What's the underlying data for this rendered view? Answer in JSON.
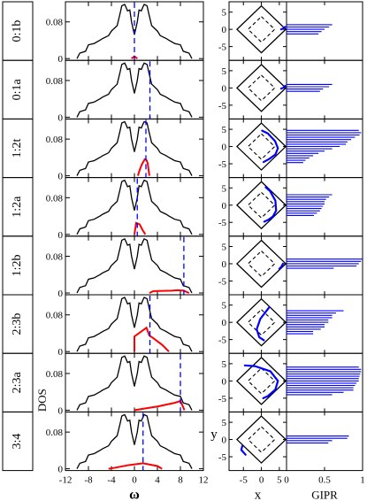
{
  "chart_data": {
    "type": "line",
    "title": "",
    "rows": [
      "0:1b",
      "0:1a",
      "1:2t",
      "1:2a",
      "1:2b",
      "2:3b",
      "2:3a",
      "3:4"
    ],
    "dos_panel": {
      "ylabel": "DOS",
      "xlabel": "ω",
      "xlim": [
        -12,
        12
      ],
      "ylim": [
        0,
        0.12
      ],
      "xticks": [
        "-12",
        "-8",
        "-4",
        "0",
        "4",
        "8",
        "12"
      ],
      "yticks": [
        "0",
        "0.08"
      ],
      "series": [
        {
          "color": "#000000",
          "x": [
            -10,
            -9.5,
            -8.5,
            -8,
            -7,
            -6,
            -5.5,
            -4.5,
            -4,
            -3,
            -2.5,
            -2.2,
            -1.7,
            -1.5,
            -1.2,
            -0.8,
            -0.5,
            0,
            0.5,
            0.8,
            1.2,
            1.5,
            1.7,
            2.2,
            2.5,
            3,
            4,
            4.5,
            5.5,
            6,
            7,
            8,
            8.5,
            9.5,
            10
          ],
          "y": [
            0,
            0.012,
            0.016,
            0.03,
            0.033,
            0.04,
            0.044,
            0.05,
            0.06,
            0.072,
            0.098,
            0.115,
            0.118,
            0.113,
            0.104,
            0.106,
            0.08,
            0.052,
            0.08,
            0.106,
            0.104,
            0.113,
            0.118,
            0.115,
            0.098,
            0.072,
            0.06,
            0.05,
            0.044,
            0.04,
            0.033,
            0.03,
            0.016,
            0.012,
            0
          ]
        }
      ],
      "markers_x": [
        0,
        2.7,
        2,
        0.5,
        8.6,
        2.7,
        8,
        1.5
      ],
      "projected_dos": [
        {
          "x": [
            -0.5,
            0,
            0.5
          ],
          "y": [
            0,
            0.005,
            0
          ]
        },
        {
          "x": [
            2.6,
            2.8
          ],
          "y": [
            0,
            0.001
          ]
        },
        {
          "x": [
            0.6,
            0.9,
            1.3,
            1.8,
            2.1,
            2.3,
            2.5,
            2.6
          ],
          "y": [
            0,
            0.012,
            0.025,
            0.036,
            0.034,
            0.028,
            0.01,
            0
          ]
        },
        {
          "x": [
            0,
            0.3,
            0.9,
            1.4,
            1.9
          ],
          "y": [
            0,
            0.025,
            0.022,
            0.01,
            0
          ]
        },
        {
          "x": [
            2.6,
            3.3,
            6.5,
            7.5,
            8.6,
            9.5
          ],
          "y": [
            0,
            0.004,
            0.005,
            0.006,
            0.005,
            0
          ]
        },
        {
          "x": [
            0,
            0,
            1,
            2.1,
            2.6,
            3.2,
            4.8,
            6
          ],
          "y": [
            0,
            0.033,
            0.042,
            0.052,
            0.035,
            0.03,
            0.015,
            0
          ]
        },
        {
          "x": [
            0,
            4,
            7,
            8,
            8.3,
            8.7
          ],
          "y": [
            0,
            0.008,
            0.016,
            0.02,
            0.012,
            0
          ]
        },
        {
          "x": [
            -4.5,
            -3.5,
            -1,
            1.5,
            4,
            4.8
          ],
          "y": [
            0,
            0.002,
            0.008,
            0.012,
            0.006,
            0
          ]
        }
      ]
    },
    "xy_panel": {
      "xlabel": "x",
      "ylabel": "y",
      "xlim": [
        -9,
        7
      ],
      "ylim": [
        -9,
        8
      ],
      "xticks": [
        "-5",
        "0",
        "5"
      ],
      "yticks": [
        "-5",
        "0",
        "5"
      ],
      "blue_paths": [
        [
          [
            5.5,
            0
          ],
          [
            6.2,
            0.3
          ],
          [
            6.6,
            0.7
          ]
        ],
        [
          [
            5.5,
            -0.2
          ],
          [
            6.2,
            0.1
          ],
          [
            6.6,
            0.6
          ]
        ],
        [
          [
            0.2,
            4.6
          ],
          [
            1.8,
            3.8
          ],
          [
            3.8,
            1.6
          ],
          [
            4.6,
            -0.5
          ],
          [
            3.9,
            -2.3
          ],
          [
            2.2,
            -3.6
          ],
          [
            0.6,
            -4.5
          ]
        ],
        [
          [
            1.2,
            5.2
          ],
          [
            2.4,
            4.1
          ],
          [
            3.9,
            1.3
          ],
          [
            4.1,
            -1.6
          ],
          [
            3.2,
            -3.3
          ],
          [
            2,
            -4.2
          ],
          [
            0.8,
            -4.8
          ]
        ],
        [
          [
            5,
            -1.5
          ],
          [
            5.6,
            -0.8
          ],
          [
            6,
            0
          ]
        ],
        [
          [
            2.2,
            4.4
          ],
          [
            -0.3,
            1
          ],
          [
            -1.3,
            -2
          ],
          [
            -0.6,
            -4.3
          ],
          [
            0.7,
            -5.2
          ]
        ],
        [
          [
            -4.6,
            4.5
          ],
          [
            -1.8,
            4.3
          ],
          [
            2.5,
            2.8
          ],
          [
            4.6,
            0
          ],
          [
            3.9,
            -2.5
          ],
          [
            1.8,
            -4.4
          ],
          [
            0.5,
            -5
          ]
        ],
        [
          [
            -4.4,
            -4.4
          ],
          [
            -5.6,
            -3
          ],
          [
            -5.3,
            -1.9
          ]
        ]
      ]
    },
    "gipr_panel": {
      "xlabel": "GIPR",
      "xlim": [
        0,
        1
      ],
      "xticks": [
        "0",
        "0.5",
        "1"
      ],
      "bar_values": [
        [
          0.6,
          0.56,
          0.5,
          0.46,
          0.42
        ],
        [
          0.6,
          0.56,
          0.48,
          0.44
        ],
        [
          0.95,
          0.98,
          0.96,
          0.9,
          0.85,
          0.8,
          0.78,
          0.7,
          0.6,
          0.5,
          0.42,
          0.35,
          0.3,
          0.25,
          0.22
        ],
        [
          0.6,
          0.56,
          0.52,
          0.5,
          0.5,
          0.48,
          0.46,
          0.44,
          0.4,
          0.36
        ],
        [
          1,
          0.98,
          0.95,
          0.92,
          0.62
        ],
        [
          0.75,
          0.65,
          0.6,
          0.6,
          0.55,
          0.55,
          0.5,
          0.5,
          0.45,
          0.35,
          0.35
        ],
        [
          0.95,
          0.98,
          0.98,
          0.97,
          0.96,
          0.95,
          0.95,
          0.92,
          0.9,
          0.88,
          0.88,
          0.75,
          0.6
        ],
        [
          0.82,
          0.8,
          0.6,
          0.55
        ]
      ]
    }
  },
  "colors": {
    "dos_line": "#000000",
    "projected": "#ff0000",
    "marker": "#0000ff",
    "blue": "#0000ff",
    "frame": "#000000"
  }
}
